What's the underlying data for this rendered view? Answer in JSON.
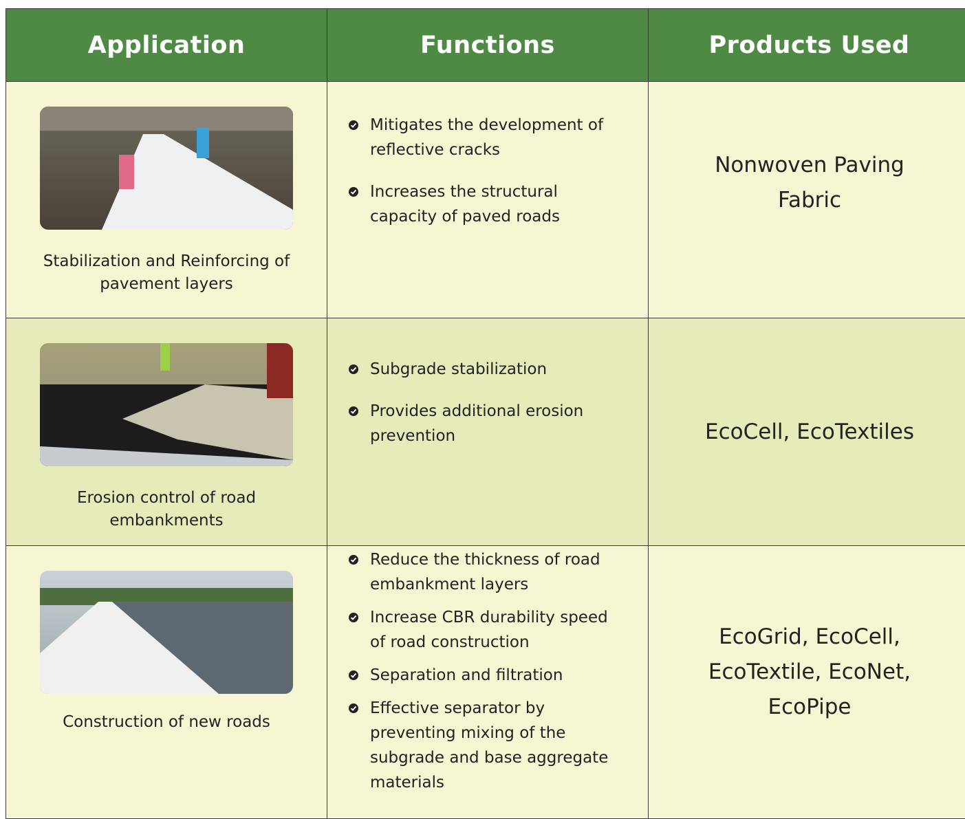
{
  "header": {
    "columns": [
      "Application",
      "Functions",
      "Products Used"
    ]
  },
  "rows": [
    {
      "application": "Stabilization and Reinforcing of pavement layers",
      "functions": [
        "Mitigates the development of reflective cracks",
        "Increases the structural capacity of paved roads"
      ],
      "products": "Nonwoven Paving Fabric"
    },
    {
      "application": "Erosion control of road embankments",
      "functions": [
        "Subgrade stabilization",
        "Provides additional erosion prevention"
      ],
      "products": "EcoCell, EcoTextiles"
    },
    {
      "application": "Construction of new roads",
      "functions": [
        "Reduce the thickness of road embankment layers",
        "Increase CBR durability speed of road construction",
        "Separation and filtration",
        "Effective separator by preventing mixing of the subgrade and base aggregate materials"
      ],
      "products": "EcoGrid, EcoCell, EcoTextile, EcoNet, EcoPipe"
    }
  ]
}
